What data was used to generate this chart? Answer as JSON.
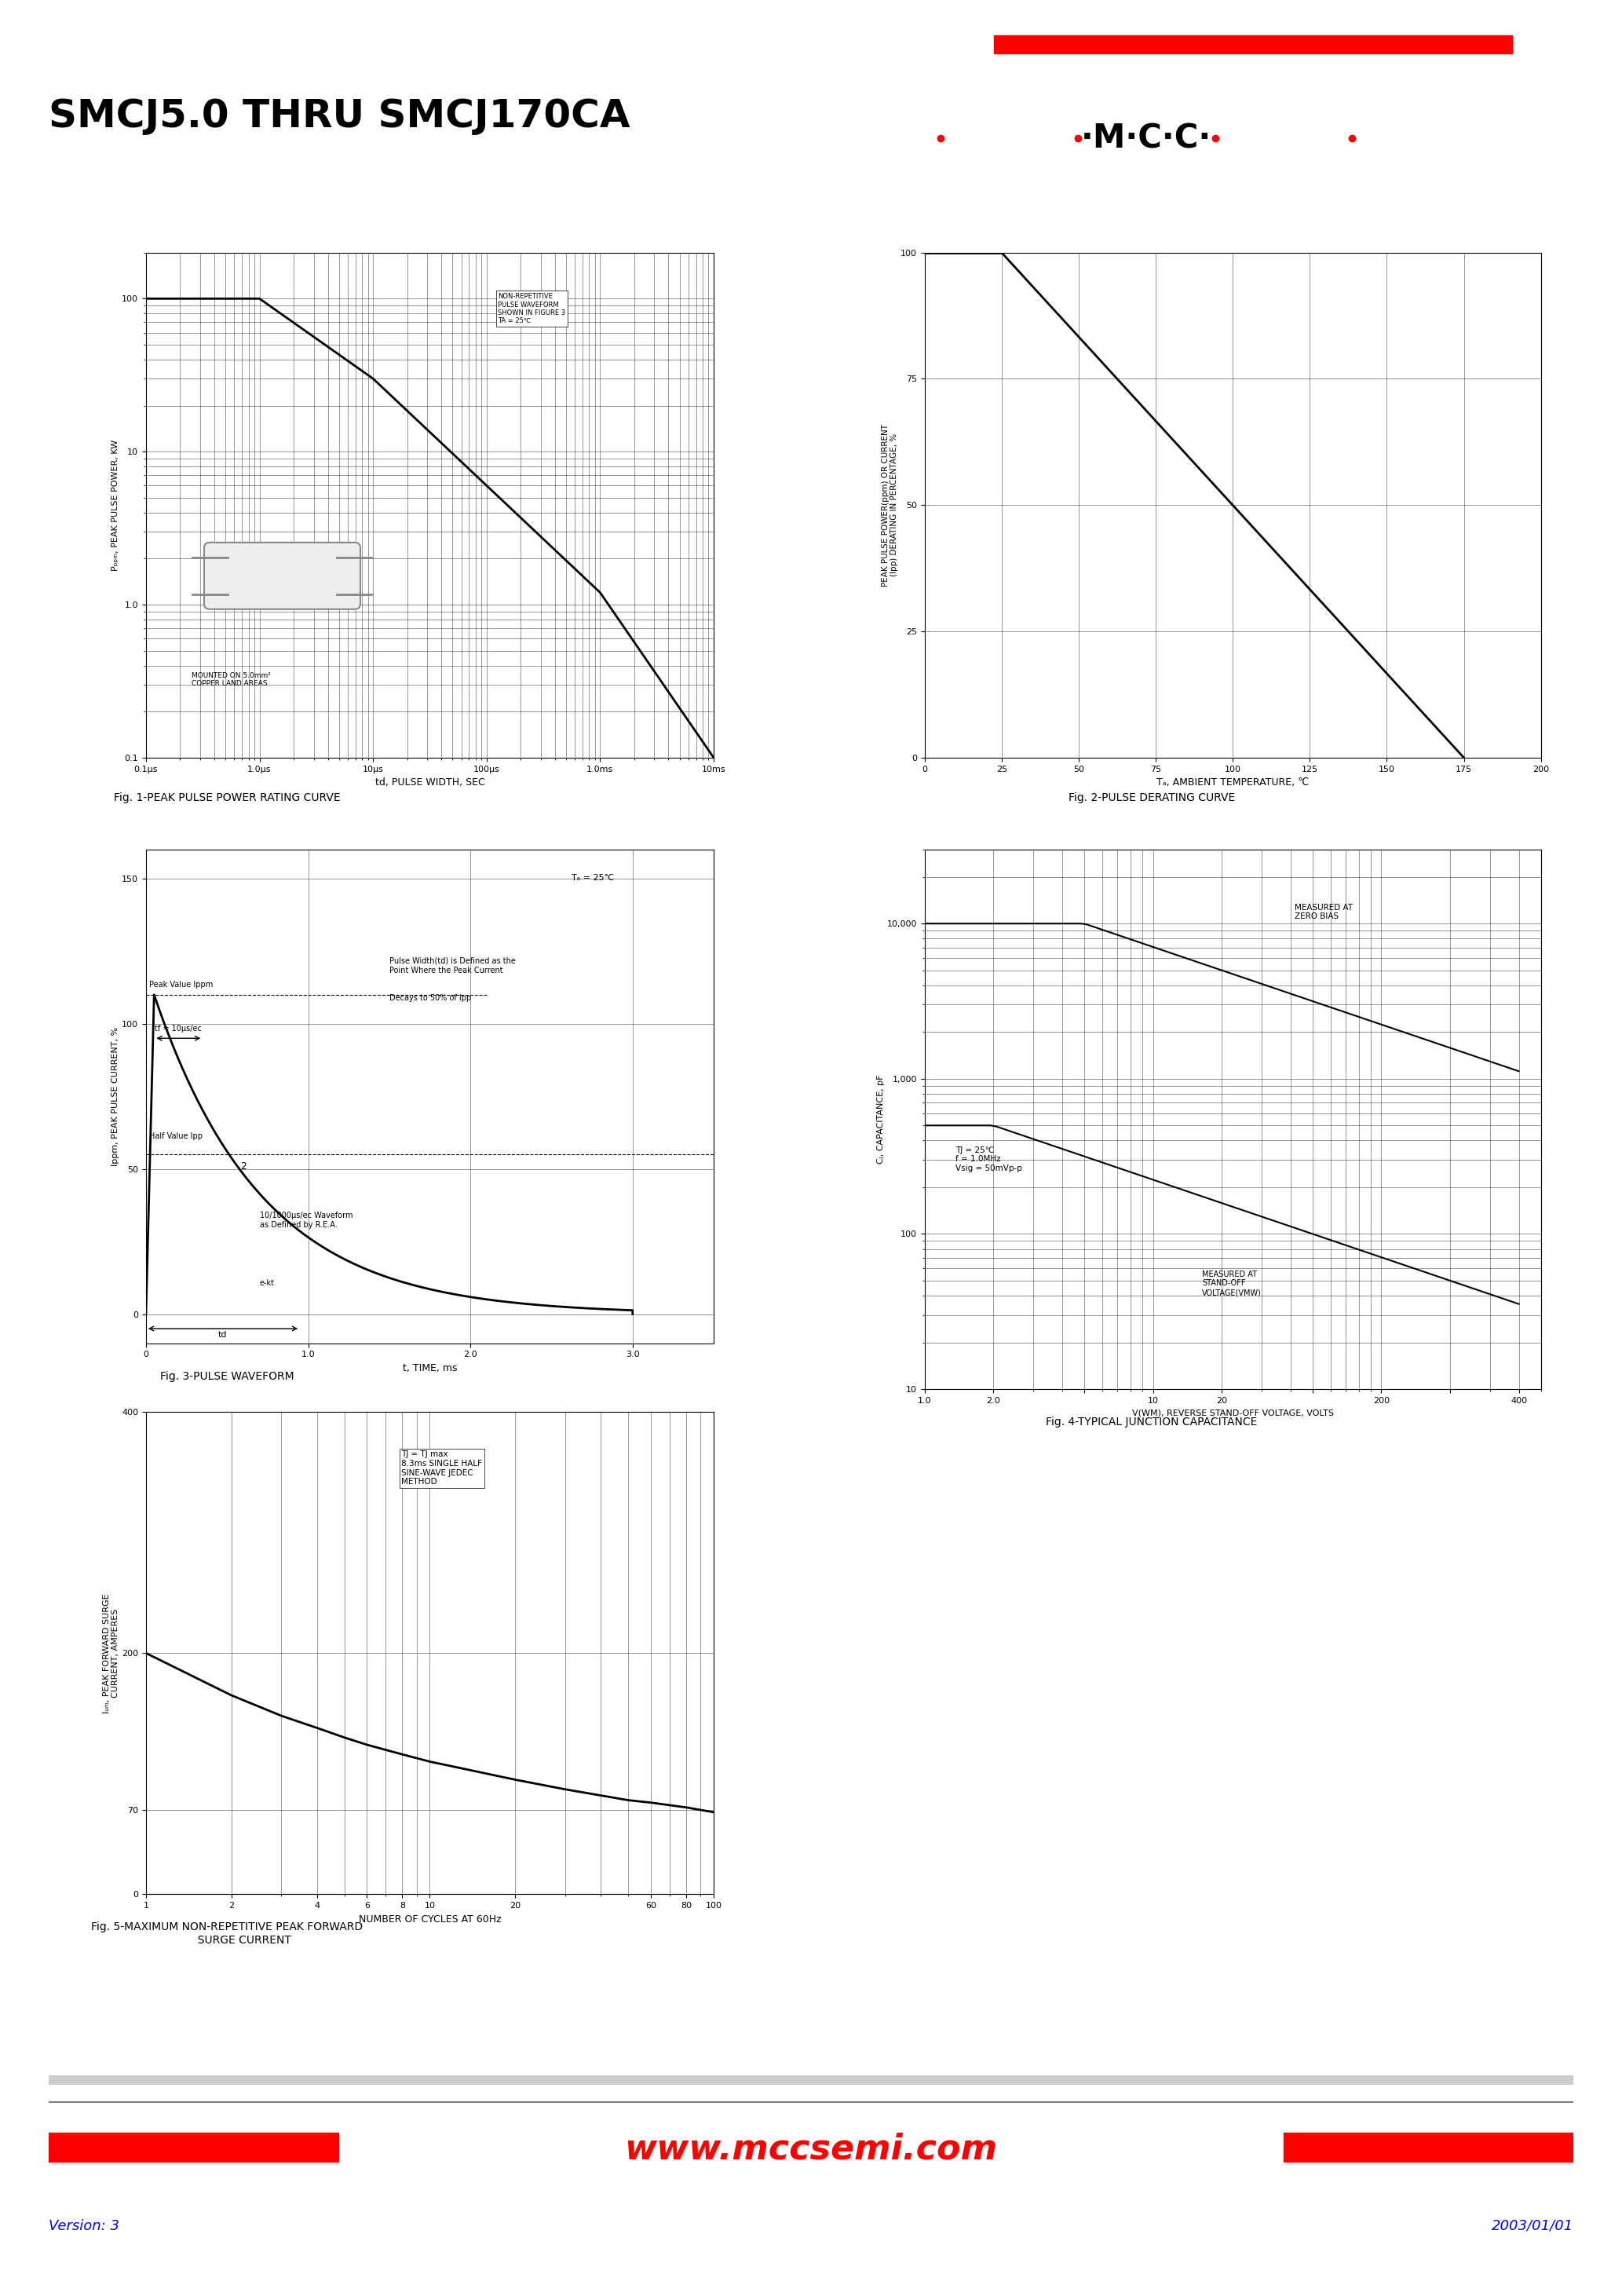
{
  "title": "SMCJ5.0 THRU SMCJ170CA",
  "bg_color": "#ffffff",
  "mcc_red": "#ff0000",
  "mcc_blue": "#0000ff",
  "text_color": "#000000",
  "version": "Version: 3",
  "date": "2003/01/01",
  "website": "www.mccsemi.com",
  "fig1_title": "Fig. 1-PEAK PULSE POWER RATING CURVE",
  "fig2_title": "Fig. 2-PULSE DERATING CURVE",
  "fig3_title": "Fig. 3-PULSE WAVEFORM",
  "fig4_title": "Fig. 4-TYPICAL JUNCTION CAPACITANCE",
  "fig5_title": "Fig. 5-MAXIMUM NON-REPETITIVE PEAK FORWARD\n          SURGE CURRENT"
}
